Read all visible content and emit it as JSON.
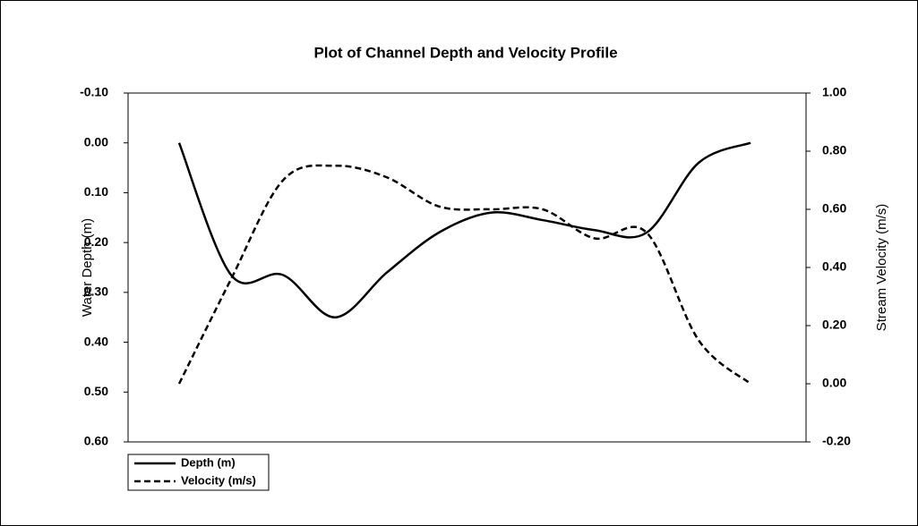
{
  "chart_data": {
    "type": "line",
    "title": "Plot of Channel Depth and Velocity Profile",
    "y_label": "Water Depth (m)",
    "y2_label": "Stream Velocity  (m/s)",
    "categories": [
      null,
      null,
      null,
      null,
      null,
      null,
      null,
      null,
      null,
      null,
      null,
      null
    ],
    "series": [
      {
        "name": "Depth (m)",
        "color": "#000000",
        "dash": false,
        "axis": "y",
        "values": [
          0.0,
          0.265,
          0.265,
          0.35,
          0.26,
          0.18,
          0.14,
          0.155,
          0.175,
          0.18,
          0.04,
          0.0
        ]
      },
      {
        "name": "Velocity (m/s)",
        "color": "#000000",
        "dash": true,
        "axis": "y2",
        "values": [
          0.0,
          0.36,
          0.7,
          0.75,
          0.71,
          0.61,
          0.6,
          0.6,
          0.5,
          0.52,
          0.15,
          0.0
        ]
      }
    ],
    "ylim": [
      -0.1,
      0.6
    ],
    "y_inverted": true,
    "yticks": [
      {
        "value": -0.1,
        "label": "-0.10"
      },
      {
        "value": 0,
        "label": "0.00"
      },
      {
        "value": 0.1,
        "label": "0.10"
      },
      {
        "value": 0.2,
        "label": "0.20"
      },
      {
        "value": 0.3,
        "label": "0.30"
      },
      {
        "value": 0.4,
        "label": "0.40"
      },
      {
        "value": 0.5,
        "label": "0.50"
      },
      {
        "value": 0.6,
        "label": "0.60"
      }
    ],
    "y2lim": [
      -0.2,
      1.0
    ],
    "y2ticks": [
      {
        "value": -0.2,
        "label": "-0.20"
      },
      {
        "value": 0,
        "label": "0.00"
      },
      {
        "value": 0.2,
        "label": "0.20"
      },
      {
        "value": 0.4,
        "label": "0.40"
      },
      {
        "value": 0.6,
        "label": "0.60"
      },
      {
        "value": 0.8,
        "label": "0.80"
      },
      {
        "value": 1.0,
        "label": "1.00"
      }
    ],
    "grid": false,
    "legend": "bottom-left"
  }
}
